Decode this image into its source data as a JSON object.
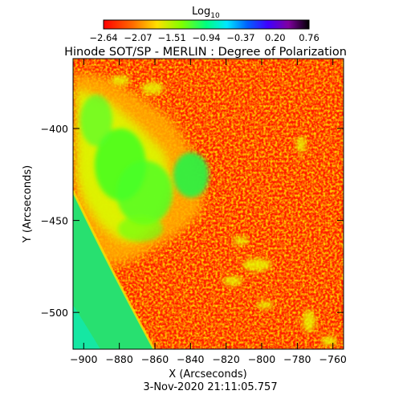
{
  "chart_data": {
    "type": "heatmap",
    "title": "Hinode SOT/SP - MERLIN : Degree of Polarization",
    "xlabel": "X (Arcseconds)",
    "ylabel": "Y (Arcseconds)",
    "footer": "3-Nov-2020 21:11:05.757",
    "colorbar": {
      "label_main": "Log",
      "label_sub": "10",
      "tick_labels": [
        "-2.64",
        "-2.07",
        "-1.51",
        "-0.94",
        "-0.37",
        "0.20",
        "0.76"
      ],
      "range": [
        -2.64,
        0.76
      ],
      "colormap": "rainbow (red-orange-yellow-green-cyan-blue-violet-black)"
    },
    "x_ticks": [
      -900,
      -880,
      -860,
      -840,
      -820,
      -800,
      -780,
      -760
    ],
    "x_tick_labels": [
      "−900",
      "−880",
      "−860",
      "−840",
      "−820",
      "−800",
      "−780",
      "−760"
    ],
    "y_ticks": [
      -400,
      -450,
      -500
    ],
    "y_tick_labels": [
      "−400",
      "−450",
      "−500"
    ],
    "xlim": [
      -906,
      -754
    ],
    "ylim": [
      -520,
      -362
    ],
    "colors": {
      "background": "#ff1a00",
      "limb_region": "#28e060",
      "sunspot_green": "#40ff20",
      "sunspot_yellow": "#d8ff00"
    }
  }
}
